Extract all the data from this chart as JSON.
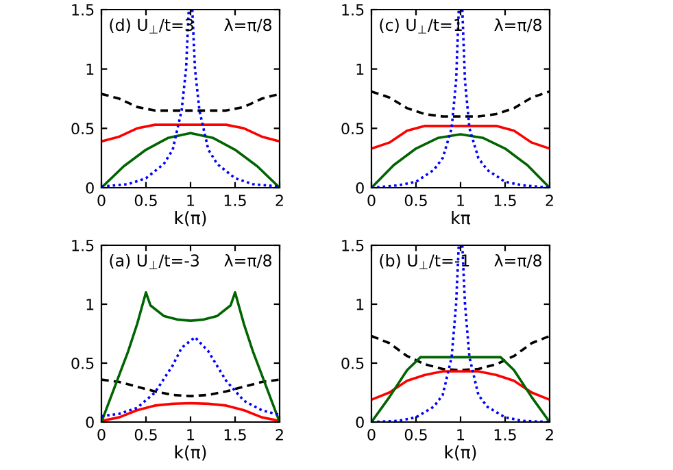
{
  "chart_data": [
    {
      "type": "line",
      "title": "(d) U$_{⊥}$/t=3",
      "subtitle": "λ=π/8",
      "xlabel": "k(π)",
      "xlim": [
        0,
        2
      ],
      "ylim": [
        0,
        1.5
      ],
      "xticks": [
        0,
        0.5,
        1,
        1.5,
        2
      ],
      "yticks": [
        0,
        0.5,
        1,
        1.5
      ],
      "series": [
        {
          "color": "#000000",
          "line_style": "dashed",
          "x": [
            0,
            0.2,
            0.4,
            0.6,
            1,
            1.4,
            1.6,
            1.8,
            2
          ],
          "values": [
            0.79,
            0.75,
            0.68,
            0.65,
            0.65,
            0.65,
            0.68,
            0.75,
            0.79
          ]
        },
        {
          "color": "#ff0000",
          "line_style": "solid",
          "x": [
            0,
            0.2,
            0.4,
            0.6,
            1,
            1.4,
            1.6,
            1.8,
            2
          ],
          "values": [
            0.39,
            0.43,
            0.5,
            0.53,
            0.53,
            0.53,
            0.5,
            0.43,
            0.39
          ]
        },
        {
          "color": "#006400",
          "line_style": "solid",
          "x": [
            0,
            0.25,
            0.5,
            0.75,
            1,
            1.25,
            1.5,
            1.75,
            2
          ],
          "values": [
            0,
            0.18,
            0.32,
            0.42,
            0.46,
            0.42,
            0.32,
            0.18,
            0
          ]
        },
        {
          "color": "#0000ff",
          "line_style": "dotted",
          "x": [
            0,
            0.3,
            0.5,
            0.7,
            0.8,
            0.9,
            0.95,
            0.98,
            1,
            1.02,
            1.05,
            1.1,
            1.2,
            1.3,
            1.5,
            1.7,
            2
          ],
          "values": [
            0.01,
            0.03,
            0.08,
            0.2,
            0.32,
            0.65,
            1.0,
            1.5,
            null,
            1.5,
            1.0,
            0.65,
            0.32,
            0.2,
            0.08,
            0.03,
            0.01
          ]
        }
      ]
    },
    {
      "type": "line",
      "title": "(c) U$_{⊥}$/t=1",
      "subtitle": "λ=π/8",
      "xlabel": "kπ",
      "xlim": [
        0,
        2
      ],
      "ylim": [
        0,
        1.5
      ],
      "xticks": [
        0,
        0.5,
        1,
        1.5,
        2
      ],
      "yticks": [
        0,
        0.5,
        1,
        1.5
      ],
      "series": [
        {
          "color": "#000000",
          "line_style": "dashed",
          "x": [
            0,
            0.2,
            0.4,
            0.6,
            0.8,
            1,
            1.2,
            1.4,
            1.6,
            1.8,
            2
          ],
          "values": [
            0.81,
            0.76,
            0.67,
            0.62,
            0.6,
            0.6,
            0.6,
            0.62,
            0.67,
            0.76,
            0.81
          ]
        },
        {
          "color": "#ff0000",
          "line_style": "solid",
          "x": [
            0,
            0.2,
            0.4,
            0.6,
            1,
            1.4,
            1.6,
            1.8,
            2
          ],
          "values": [
            0.33,
            0.38,
            0.48,
            0.52,
            0.52,
            0.52,
            0.48,
            0.38,
            0.33
          ]
        },
        {
          "color": "#006400",
          "line_style": "solid",
          "x": [
            0,
            0.25,
            0.5,
            0.75,
            1,
            1.25,
            1.5,
            1.75,
            2
          ],
          "values": [
            0,
            0.19,
            0.33,
            0.42,
            0.45,
            0.42,
            0.33,
            0.19,
            0
          ]
        },
        {
          "color": "#0000ff",
          "line_style": "dotted",
          "x": [
            0,
            0.3,
            0.5,
            0.7,
            0.8,
            0.9,
            0.95,
            0.98,
            1,
            1.02,
            1.05,
            1.1,
            1.2,
            1.3,
            1.5,
            1.7,
            2
          ],
          "values": [
            0,
            0.02,
            0.05,
            0.15,
            0.25,
            0.5,
            0.9,
            1.5,
            null,
            1.5,
            0.9,
            0.5,
            0.25,
            0.15,
            0.05,
            0.02,
            0
          ]
        }
      ]
    },
    {
      "type": "line",
      "title": "(a) U$_{⊥}$/t=-3",
      "subtitle": "λ=π/8",
      "xlabel": "k(π)",
      "xlim": [
        0,
        2
      ],
      "ylim": [
        0,
        1.5
      ],
      "xticks": [
        0,
        0.5,
        1,
        1.5,
        2
      ],
      "yticks": [
        0,
        0.5,
        1,
        1.5
      ],
      "series": [
        {
          "color": "#000000",
          "line_style": "dashed",
          "x": [
            0,
            0.2,
            0.4,
            0.6,
            0.8,
            1,
            1.2,
            1.4,
            1.6,
            1.8,
            2
          ],
          "values": [
            0.36,
            0.34,
            0.3,
            0.26,
            0.23,
            0.22,
            0.23,
            0.26,
            0.3,
            0.34,
            0.36
          ]
        },
        {
          "color": "#ff0000",
          "line_style": "solid",
          "x": [
            0,
            0.2,
            0.4,
            0.6,
            0.8,
            1,
            1.2,
            1.4,
            1.6,
            1.8,
            2
          ],
          "values": [
            0.01,
            0.04,
            0.1,
            0.14,
            0.155,
            0.16,
            0.155,
            0.14,
            0.1,
            0.04,
            0.01
          ]
        },
        {
          "color": "#006400",
          "line_style": "solid",
          "x": [
            0,
            0.1,
            0.2,
            0.3,
            0.4,
            0.5,
            0.55,
            0.7,
            0.85,
            1,
            1.15,
            1.3,
            1.45,
            1.5,
            1.6,
            1.7,
            1.8,
            1.9,
            2
          ],
          "values": [
            0,
            0.2,
            0.4,
            0.6,
            0.83,
            1.1,
            0.99,
            0.9,
            0.87,
            0.86,
            0.87,
            0.9,
            0.99,
            1.1,
            0.83,
            0.6,
            0.4,
            0.2,
            0
          ]
        },
        {
          "color": "#0000ff",
          "line_style": "dotted",
          "x": [
            0,
            0.2,
            0.4,
            0.6,
            0.8,
            0.9,
            1.05,
            1.2,
            1.4,
            1.6,
            1.8,
            2
          ],
          "values": [
            0.05,
            0.07,
            0.12,
            0.25,
            0.48,
            0.63,
            0.72,
            0.6,
            0.35,
            0.18,
            0.1,
            0.06
          ]
        }
      ]
    },
    {
      "type": "line",
      "title": "(b) U$_{⊥}$/t=-1",
      "subtitle": "λ=π/8",
      "xlabel": "k(π)",
      "xlim": [
        0,
        2
      ],
      "ylim": [
        0,
        1.5
      ],
      "xticks": [
        0,
        0.5,
        1,
        1.5,
        2
      ],
      "yticks": [
        0,
        0.5,
        1,
        1.5
      ],
      "series": [
        {
          "color": "#000000",
          "line_style": "dashed",
          "x": [
            0,
            0.2,
            0.4,
            0.6,
            0.8,
            1,
            1.2,
            1.4,
            1.6,
            1.8,
            2
          ],
          "values": [
            0.73,
            0.67,
            0.56,
            0.49,
            0.45,
            0.44,
            0.45,
            0.49,
            0.56,
            0.67,
            0.73
          ]
        },
        {
          "color": "#ff0000",
          "line_style": "solid",
          "x": [
            0,
            0.2,
            0.4,
            0.6,
            0.8,
            1,
            1.2,
            1.4,
            1.6,
            1.8,
            2
          ],
          "values": [
            0.19,
            0.25,
            0.35,
            0.4,
            0.43,
            0.43,
            0.43,
            0.4,
            0.35,
            0.25,
            0.19
          ]
        },
        {
          "color": "#006400",
          "line_style": "solid",
          "x": [
            0,
            0.2,
            0.4,
            0.55,
            1,
            1.45,
            1.6,
            1.8,
            2
          ],
          "values": [
            0,
            0.21,
            0.44,
            0.55,
            0.55,
            0.55,
            0.44,
            0.21,
            0
          ]
        },
        {
          "color": "#0000ff",
          "line_style": "dotted",
          "x": [
            0,
            0.3,
            0.5,
            0.7,
            0.8,
            0.9,
            0.95,
            0.98,
            1,
            1.02,
            1.05,
            1.1,
            1.2,
            1.3,
            1.5,
            1.7,
            2
          ],
          "values": [
            0,
            0.01,
            0.04,
            0.13,
            0.23,
            0.55,
            1.0,
            1.5,
            null,
            1.5,
            1.0,
            0.55,
            0.23,
            0.13,
            0.04,
            0.01,
            0
          ]
        }
      ]
    }
  ]
}
